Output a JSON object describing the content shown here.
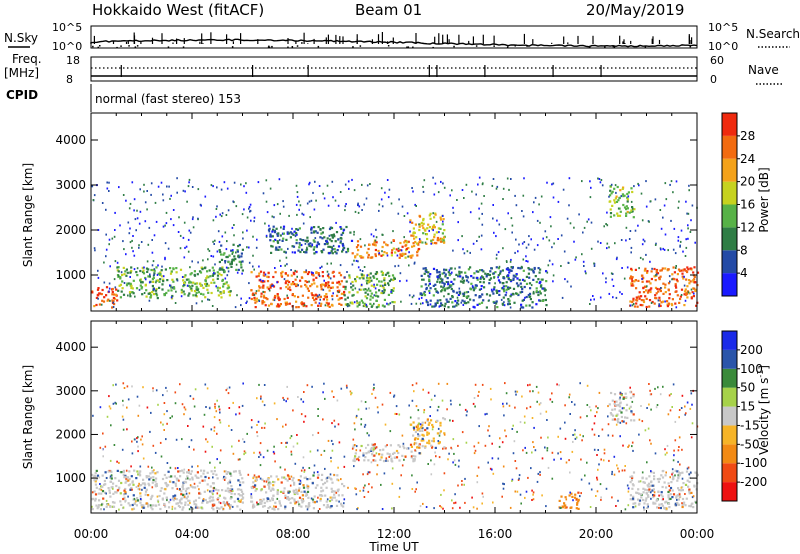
{
  "header": {
    "title": "Hokkaido West (fitACF)",
    "beam": "Beam 01",
    "date": "20/May/2019"
  },
  "nsky_panel": {
    "left_label": "N.Sky",
    "right_label": "N.Search",
    "left_ticks": [
      "10^5",
      "10^0"
    ],
    "right_ticks": [
      "10^5",
      "10^0"
    ]
  },
  "freq_panel": {
    "left_label_1": "Freq.",
    "left_label_2": "[MHz]",
    "right_label": "Nave",
    "left_ticks": [
      "18",
      "8"
    ],
    "right_ticks": [
      "60",
      "0"
    ]
  },
  "cpid": {
    "label": "CPID",
    "value": "normal (fast stereo) 153"
  },
  "colors": {
    "power": [
      "#1a1aff",
      "#234aa6",
      "#2f7d45",
      "#57b247",
      "#c6d21f",
      "#f4a21a",
      "#f26b10",
      "#ef2a0e"
    ],
    "velocity": [
      "#ee1111",
      "#f04a14",
      "#f28a14",
      "#f6b428",
      "#c8c8c8",
      "#a6d24a",
      "#3a8a3a",
      "#2a55aa",
      "#1a2ae8"
    ]
  },
  "chart_data": [
    {
      "type": "heatmap",
      "name": "power-panel",
      "ylabel": "Slant Range [km]",
      "yticks": [
        1000,
        2000,
        3000,
        4000
      ],
      "ylim": [
        200,
        4600
      ],
      "xlim": [
        0,
        24
      ],
      "colorbar": {
        "label": "Power [dB]",
        "ticks": [
          "4",
          "8",
          "12",
          "16",
          "20",
          "24",
          "28"
        ],
        "range": [
          0,
          32
        ]
      },
      "features": [
        {
          "t0": 0.0,
          "t1": 1.0,
          "r0": 300,
          "r1": 800,
          "level": 28
        },
        {
          "t0": 1.0,
          "t1": 5.5,
          "r0": 500,
          "r1": 1200,
          "level": 14
        },
        {
          "t0": 5.0,
          "t1": 6.0,
          "r0": 1100,
          "r1": 1700,
          "level": 10
        },
        {
          "t0": 6.3,
          "t1": 10.0,
          "r0": 300,
          "r1": 1100,
          "level": 27
        },
        {
          "t0": 7.0,
          "t1": 10.3,
          "r0": 1500,
          "r1": 2100,
          "level": 8
        },
        {
          "t0": 10.3,
          "t1": 13.0,
          "r0": 1400,
          "r1": 1800,
          "level": 24
        },
        {
          "t0": 12.6,
          "t1": 14.0,
          "r0": 1700,
          "r1": 2400,
          "level": 20
        },
        {
          "t0": 10.0,
          "t1": 12.0,
          "r0": 300,
          "r1": 1100,
          "level": 14
        },
        {
          "t0": 13.0,
          "t1": 18.0,
          "r0": 300,
          "r1": 1200,
          "level": 8
        },
        {
          "t0": 20.5,
          "t1": 21.5,
          "r0": 2300,
          "r1": 3000,
          "level": 16
        },
        {
          "t0": 21.3,
          "t1": 24.0,
          "r0": 300,
          "r1": 1200,
          "level": 26
        }
      ]
    },
    {
      "type": "heatmap",
      "name": "velocity-panel",
      "ylabel": "Slant Range [km]",
      "yticks": [
        1000,
        2000,
        3000,
        4000
      ],
      "ylim": [
        200,
        4600
      ],
      "xlim": [
        0,
        24
      ],
      "xlabel": "Time UT",
      "xticks": [
        "00:00",
        "04:00",
        "08:00",
        "12:00",
        "16:00",
        "20:00",
        "00:00"
      ],
      "colorbar": {
        "label": "Velocity [m s",
        "label_sup": "-1",
        "label_end": "]",
        "ticks": [
          "200",
          "100",
          "50",
          "15",
          "-15",
          "-50",
          "-100",
          "-200"
        ],
        "range": [
          -250,
          250
        ]
      },
      "features": [
        {
          "t0": 0.0,
          "t1": 6.0,
          "r0": 300,
          "r1": 1200,
          "level": 0
        },
        {
          "t0": 6.3,
          "t1": 10.0,
          "r0": 300,
          "r1": 1100,
          "level": 0
        },
        {
          "t0": 10.3,
          "t1": 13.0,
          "r0": 1400,
          "r1": 1800,
          "level": 0
        },
        {
          "t0": 12.6,
          "t1": 14.0,
          "r0": 1700,
          "r1": 2400,
          "level": -20
        },
        {
          "t0": 20.5,
          "t1": 21.5,
          "r0": 2300,
          "r1": 3000,
          "level": 0
        },
        {
          "t0": 21.3,
          "t1": 24.0,
          "r0": 300,
          "r1": 1200,
          "level": 0
        },
        {
          "t0": 18.5,
          "t1": 19.3,
          "r0": 300,
          "r1": 700,
          "level": -60
        }
      ]
    }
  ]
}
